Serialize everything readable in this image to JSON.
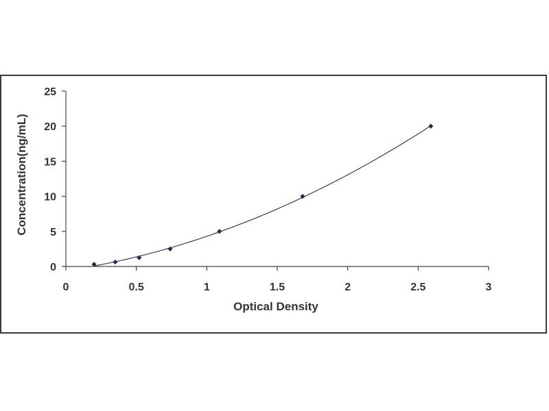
{
  "chart_data": {
    "type": "scatter",
    "title": "",
    "xlabel": "Optical Density",
    "ylabel": "Concentration(ng/mL)",
    "xlim": [
      0,
      3
    ],
    "ylim": [
      0,
      25
    ],
    "x_ticks": [
      "0",
      "0.5",
      "1",
      "1.5",
      "2",
      "2.5",
      "3"
    ],
    "y_ticks": [
      "0",
      "5",
      "10",
      "15",
      "20",
      "25"
    ],
    "grid": false,
    "legend": "none",
    "fit_curve": true,
    "series": [
      {
        "x": [
          0.2,
          0.35,
          0.52,
          0.74,
          1.09,
          1.68,
          2.59
        ],
        "y": [
          0.31,
          0.63,
          1.25,
          2.5,
          5,
          10,
          20
        ]
      }
    ],
    "colors": {
      "marker": "#1f2a55",
      "curve": "#3c3c3c",
      "axis": "#444444",
      "frame": "#3a3a3a"
    }
  }
}
